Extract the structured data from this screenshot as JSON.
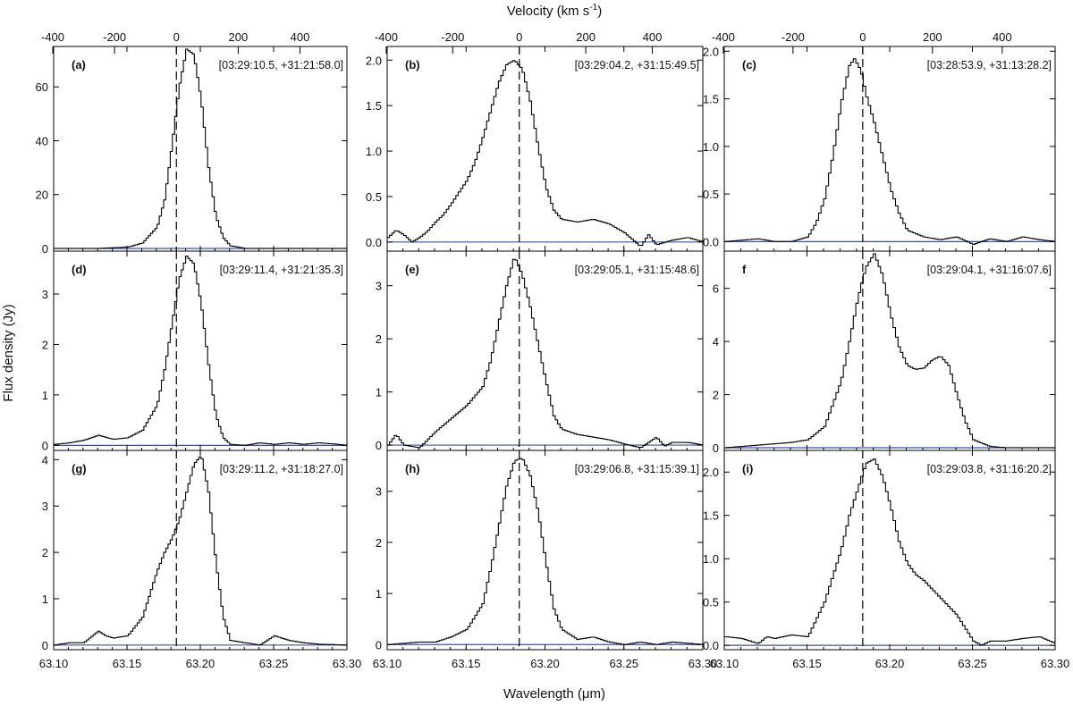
{
  "figure": {
    "top_axis_title": "Velocity (km s",
    "top_axis_title_sup": "-1",
    "top_axis_title_end": ")",
    "y_axis_title": "Flux density (Jy)",
    "x_axis_title": "Wavelength (μm)"
  },
  "chart_data": {
    "type": "line",
    "line_rest_um": 63.1837,
    "x_range": [
      63.1,
      63.3
    ],
    "x_ticks": [
      "63.10",
      "63.15",
      "63.20",
      "63.25",
      "63.30"
    ],
    "velocity_ticks": [
      "-400",
      "-200",
      "0",
      "200",
      "400"
    ],
    "xlabel": "Wavelength (μm)",
    "ylabel": "Flux density (Jy)",
    "secondary_xlabel": "Velocity (km s-1)",
    "panels": [
      {
        "id": "a",
        "label": "(a)",
        "coord": "[03:29:10.5, +31:21:58.0]",
        "ylim": [
          -1,
          75
        ],
        "yticks": [
          "0",
          "20",
          "40",
          "60"
        ],
        "ytick_vals": [
          0,
          20,
          40,
          60
        ],
        "baseline": 0,
        "points": [
          [
            63.1,
            0
          ],
          [
            63.13,
            0
          ],
          [
            63.15,
            0.5
          ],
          [
            63.16,
            2
          ],
          [
            63.17,
            8
          ],
          [
            63.175,
            18
          ],
          [
            63.18,
            38
          ],
          [
            63.185,
            60
          ],
          [
            63.19,
            74
          ],
          [
            63.195,
            72
          ],
          [
            63.2,
            55
          ],
          [
            63.205,
            30
          ],
          [
            63.21,
            12
          ],
          [
            63.215,
            4
          ],
          [
            63.22,
            1
          ],
          [
            63.23,
            0
          ],
          [
            63.3,
            0
          ]
        ]
      },
      {
        "id": "b",
        "label": "(b)",
        "coord": "[03:29:04.2, +31:15:49.5]",
        "ylim": [
          -0.1,
          2.15
        ],
        "yticks": [
          "0.0",
          "0.5",
          "1.0",
          "1.5",
          "2.0"
        ],
        "ytick_vals": [
          0,
          0.5,
          1.0,
          1.5,
          2.0
        ],
        "baseline": 0,
        "points": [
          [
            63.1,
            0.05
          ],
          [
            63.105,
            0.13
          ],
          [
            63.11,
            0.08
          ],
          [
            63.115,
            0.0
          ],
          [
            63.12,
            0.05
          ],
          [
            63.125,
            0.12
          ],
          [
            63.13,
            0.22
          ],
          [
            63.135,
            0.3
          ],
          [
            63.14,
            0.42
          ],
          [
            63.145,
            0.55
          ],
          [
            63.15,
            0.68
          ],
          [
            63.155,
            0.88
          ],
          [
            63.16,
            1.15
          ],
          [
            63.165,
            1.45
          ],
          [
            63.17,
            1.75
          ],
          [
            63.175,
            1.95
          ],
          [
            63.18,
            2.0
          ],
          [
            63.185,
            1.9
          ],
          [
            63.19,
            1.55
          ],
          [
            63.195,
            1.05
          ],
          [
            63.2,
            0.6
          ],
          [
            63.205,
            0.35
          ],
          [
            63.21,
            0.25
          ],
          [
            63.22,
            0.22
          ],
          [
            63.23,
            0.25
          ],
          [
            63.24,
            0.2
          ],
          [
            63.25,
            0.1
          ],
          [
            63.26,
            -0.05
          ],
          [
            63.265,
            0.08
          ],
          [
            63.27,
            -0.03
          ],
          [
            63.28,
            0.02
          ],
          [
            63.29,
            0.05
          ],
          [
            63.3,
            0.0
          ]
        ]
      },
      {
        "id": "c",
        "label": "(c)",
        "coord": "[03:28:53.9, +31:13:28.2]",
        "ylim": [
          -0.1,
          2.05
        ],
        "yticks": [
          "0.0",
          "0.5",
          "1.0",
          "1.5",
          "2.0"
        ],
        "ytick_vals": [
          0,
          0.5,
          1.0,
          1.5,
          2.0
        ],
        "baseline": 0,
        "points": [
          [
            63.1,
            0.0
          ],
          [
            63.12,
            0.03
          ],
          [
            63.13,
            0.0
          ],
          [
            63.14,
            0.0
          ],
          [
            63.15,
            0.05
          ],
          [
            63.155,
            0.2
          ],
          [
            63.16,
            0.45
          ],
          [
            63.165,
            0.9
          ],
          [
            63.17,
            1.45
          ],
          [
            63.175,
            1.85
          ],
          [
            63.178,
            1.92
          ],
          [
            63.182,
            1.8
          ],
          [
            63.185,
            1.55
          ],
          [
            63.19,
            1.25
          ],
          [
            63.195,
            0.9
          ],
          [
            63.2,
            0.55
          ],
          [
            63.205,
            0.3
          ],
          [
            63.21,
            0.12
          ],
          [
            63.22,
            0.05
          ],
          [
            63.23,
            0.02
          ],
          [
            63.24,
            0.05
          ],
          [
            63.25,
            -0.03
          ],
          [
            63.26,
            0.03
          ],
          [
            63.27,
            0.0
          ],
          [
            63.28,
            0.05
          ],
          [
            63.29,
            0.02
          ],
          [
            63.3,
            0.0
          ]
        ]
      },
      {
        "id": "d",
        "label": "(d)",
        "coord": "[03:29:11.4, +31:21:35.3]",
        "ylim": [
          -0.1,
          3.85
        ],
        "yticks": [
          "0",
          "1",
          "2",
          "3"
        ],
        "ytick_vals": [
          0,
          1,
          2,
          3
        ],
        "baseline": 0,
        "points": [
          [
            63.1,
            0.02
          ],
          [
            63.11,
            0.05
          ],
          [
            63.12,
            0.1
          ],
          [
            63.13,
            0.2
          ],
          [
            63.14,
            0.12
          ],
          [
            63.15,
            0.15
          ],
          [
            63.16,
            0.3
          ],
          [
            63.17,
            0.8
          ],
          [
            63.175,
            1.5
          ],
          [
            63.18,
            2.4
          ],
          [
            63.185,
            3.3
          ],
          [
            63.19,
            3.75
          ],
          [
            63.195,
            3.6
          ],
          [
            63.2,
            2.8
          ],
          [
            63.205,
            1.6
          ],
          [
            63.21,
            0.6
          ],
          [
            63.215,
            0.15
          ],
          [
            63.22,
            0.02
          ],
          [
            63.23,
            0.0
          ],
          [
            63.24,
            0.05
          ],
          [
            63.25,
            0.02
          ],
          [
            63.26,
            0.05
          ],
          [
            63.27,
            0.02
          ],
          [
            63.28,
            0.05
          ],
          [
            63.29,
            0.03
          ],
          [
            63.3,
            0.0
          ]
        ]
      },
      {
        "id": "e",
        "label": "(e)",
        "coord": "[03:29:05.1, +31:15:48.6]",
        "ylim": [
          -0.1,
          3.65
        ],
        "yticks": [
          "0",
          "1",
          "2",
          "3"
        ],
        "ytick_vals": [
          0,
          1,
          2,
          3
        ],
        "baseline": 0,
        "points": [
          [
            63.1,
            0.0
          ],
          [
            63.105,
            0.2
          ],
          [
            63.11,
            0.0
          ],
          [
            63.12,
            -0.05
          ],
          [
            63.125,
            0.1
          ],
          [
            63.13,
            0.25
          ],
          [
            63.14,
            0.5
          ],
          [
            63.15,
            0.75
          ],
          [
            63.16,
            1.1
          ],
          [
            63.165,
            1.6
          ],
          [
            63.17,
            2.3
          ],
          [
            63.175,
            3.0
          ],
          [
            63.18,
            3.55
          ],
          [
            63.185,
            3.2
          ],
          [
            63.19,
            2.6
          ],
          [
            63.195,
            1.9
          ],
          [
            63.2,
            1.2
          ],
          [
            63.205,
            0.55
          ],
          [
            63.21,
            0.3
          ],
          [
            63.22,
            0.2
          ],
          [
            63.23,
            0.15
          ],
          [
            63.24,
            0.1
          ],
          [
            63.25,
            0.02
          ],
          [
            63.26,
            -0.05
          ],
          [
            63.27,
            0.15
          ],
          [
            63.275,
            -0.02
          ],
          [
            63.28,
            0.05
          ],
          [
            63.29,
            0.05
          ],
          [
            63.3,
            0.0
          ]
        ]
      },
      {
        "id": "f",
        "label": "f",
        "coord": "[03:29:04.1, +31:16:07.6]",
        "ylim": [
          -0.1,
          7.4
        ],
        "yticks": [
          "0",
          "2",
          "4",
          "6"
        ],
        "ytick_vals": [
          0,
          2,
          4,
          6
        ],
        "baseline": 0,
        "points": [
          [
            63.1,
            0.0
          ],
          [
            63.12,
            0.1
          ],
          [
            63.14,
            0.2
          ],
          [
            63.15,
            0.3
          ],
          [
            63.16,
            0.8
          ],
          [
            63.17,
            2.5
          ],
          [
            63.175,
            4.0
          ],
          [
            63.18,
            5.6
          ],
          [
            63.185,
            6.8
          ],
          [
            63.19,
            7.3
          ],
          [
            63.195,
            6.5
          ],
          [
            63.2,
            5.0
          ],
          [
            63.205,
            3.8
          ],
          [
            63.21,
            3.1
          ],
          [
            63.215,
            2.95
          ],
          [
            63.22,
            3.0
          ],
          [
            63.225,
            3.3
          ],
          [
            63.23,
            3.45
          ],
          [
            63.235,
            3.1
          ],
          [
            63.24,
            2.0
          ],
          [
            63.245,
            1.0
          ],
          [
            63.25,
            0.3
          ],
          [
            63.26,
            0.05
          ],
          [
            63.27,
            0.0
          ],
          [
            63.28,
            0.0
          ],
          [
            63.3,
            0.0
          ]
        ]
      },
      {
        "id": "g",
        "label": "(g)",
        "coord": "[03:29:11.2, +31:18:27.0]",
        "ylim": [
          -0.1,
          4.2
        ],
        "yticks": [
          "0",
          "1",
          "2",
          "3",
          "4"
        ],
        "ytick_vals": [
          0,
          1,
          2,
          3,
          4
        ],
        "baseline": 0,
        "points": [
          [
            63.1,
            0.0
          ],
          [
            63.11,
            0.05
          ],
          [
            63.12,
            0.05
          ],
          [
            63.13,
            0.3
          ],
          [
            63.135,
            0.2
          ],
          [
            63.14,
            0.15
          ],
          [
            63.15,
            0.2
          ],
          [
            63.16,
            0.6
          ],
          [
            63.165,
            1.1
          ],
          [
            63.17,
            1.6
          ],
          [
            63.175,
            2.0
          ],
          [
            63.18,
            2.3
          ],
          [
            63.185,
            2.7
          ],
          [
            63.19,
            3.3
          ],
          [
            63.195,
            3.9
          ],
          [
            63.2,
            4.1
          ],
          [
            63.205,
            3.3
          ],
          [
            63.21,
            1.8
          ],
          [
            63.215,
            0.6
          ],
          [
            63.22,
            0.1
          ],
          [
            63.23,
            0.05
          ],
          [
            63.24,
            0.0
          ],
          [
            63.25,
            0.2
          ],
          [
            63.26,
            0.1
          ],
          [
            63.27,
            0.05
          ],
          [
            63.28,
            0.02
          ],
          [
            63.3,
            0.0
          ]
        ]
      },
      {
        "id": "h",
        "label": "(h)",
        "coord": "[03:29:06.8, +31:15:39.1]",
        "ylim": [
          -0.1,
          3.8
        ],
        "yticks": [
          "0",
          "1",
          "2",
          "3"
        ],
        "ytick_vals": [
          0,
          1,
          2,
          3
        ],
        "baseline": 0,
        "points": [
          [
            63.1,
            0.0
          ],
          [
            63.12,
            0.05
          ],
          [
            63.13,
            0.05
          ],
          [
            63.14,
            0.15
          ],
          [
            63.15,
            0.3
          ],
          [
            63.16,
            0.8
          ],
          [
            63.165,
            1.5
          ],
          [
            63.17,
            2.3
          ],
          [
            63.175,
            3.1
          ],
          [
            63.18,
            3.6
          ],
          [
            63.185,
            3.65
          ],
          [
            63.19,
            3.3
          ],
          [
            63.195,
            2.6
          ],
          [
            63.2,
            1.6
          ],
          [
            63.205,
            0.7
          ],
          [
            63.21,
            0.3
          ],
          [
            63.22,
            0.1
          ],
          [
            63.23,
            0.15
          ],
          [
            63.24,
            0.05
          ],
          [
            63.25,
            0.0
          ],
          [
            63.26,
            0.05
          ],
          [
            63.27,
            0.0
          ],
          [
            63.28,
            0.05
          ],
          [
            63.3,
            0.0
          ]
        ]
      },
      {
        "id": "i",
        "label": "(i)",
        "coord": "[03:29:03.8, +31:16:20.2]",
        "ylim": [
          -0.05,
          2.25
        ],
        "yticks": [
          "0.0",
          "0.5",
          "1.0",
          "1.5",
          "2.0"
        ],
        "ytick_vals": [
          0,
          0.5,
          1.0,
          1.5,
          2.0
        ],
        "baseline": 0,
        "points": [
          [
            63.1,
            0.1
          ],
          [
            63.11,
            0.08
          ],
          [
            63.12,
            0.02
          ],
          [
            63.125,
            0.1
          ],
          [
            63.13,
            0.08
          ],
          [
            63.14,
            0.12
          ],
          [
            63.15,
            0.1
          ],
          [
            63.155,
            0.3
          ],
          [
            63.16,
            0.5
          ],
          [
            63.165,
            0.8
          ],
          [
            63.17,
            1.1
          ],
          [
            63.175,
            1.5
          ],
          [
            63.18,
            1.8
          ],
          [
            63.185,
            2.1
          ],
          [
            63.19,
            2.15
          ],
          [
            63.195,
            1.95
          ],
          [
            63.2,
            1.6
          ],
          [
            63.205,
            1.2
          ],
          [
            63.21,
            0.95
          ],
          [
            63.215,
            0.82
          ],
          [
            63.22,
            0.75
          ],
          [
            63.23,
            0.55
          ],
          [
            63.24,
            0.35
          ],
          [
            63.245,
            0.2
          ],
          [
            63.25,
            0.05
          ],
          [
            63.255,
            0.0
          ],
          [
            63.26,
            0.05
          ],
          [
            63.27,
            0.05
          ],
          [
            63.28,
            0.08
          ],
          [
            63.29,
            0.1
          ],
          [
            63.3,
            0.02
          ]
        ]
      }
    ]
  }
}
